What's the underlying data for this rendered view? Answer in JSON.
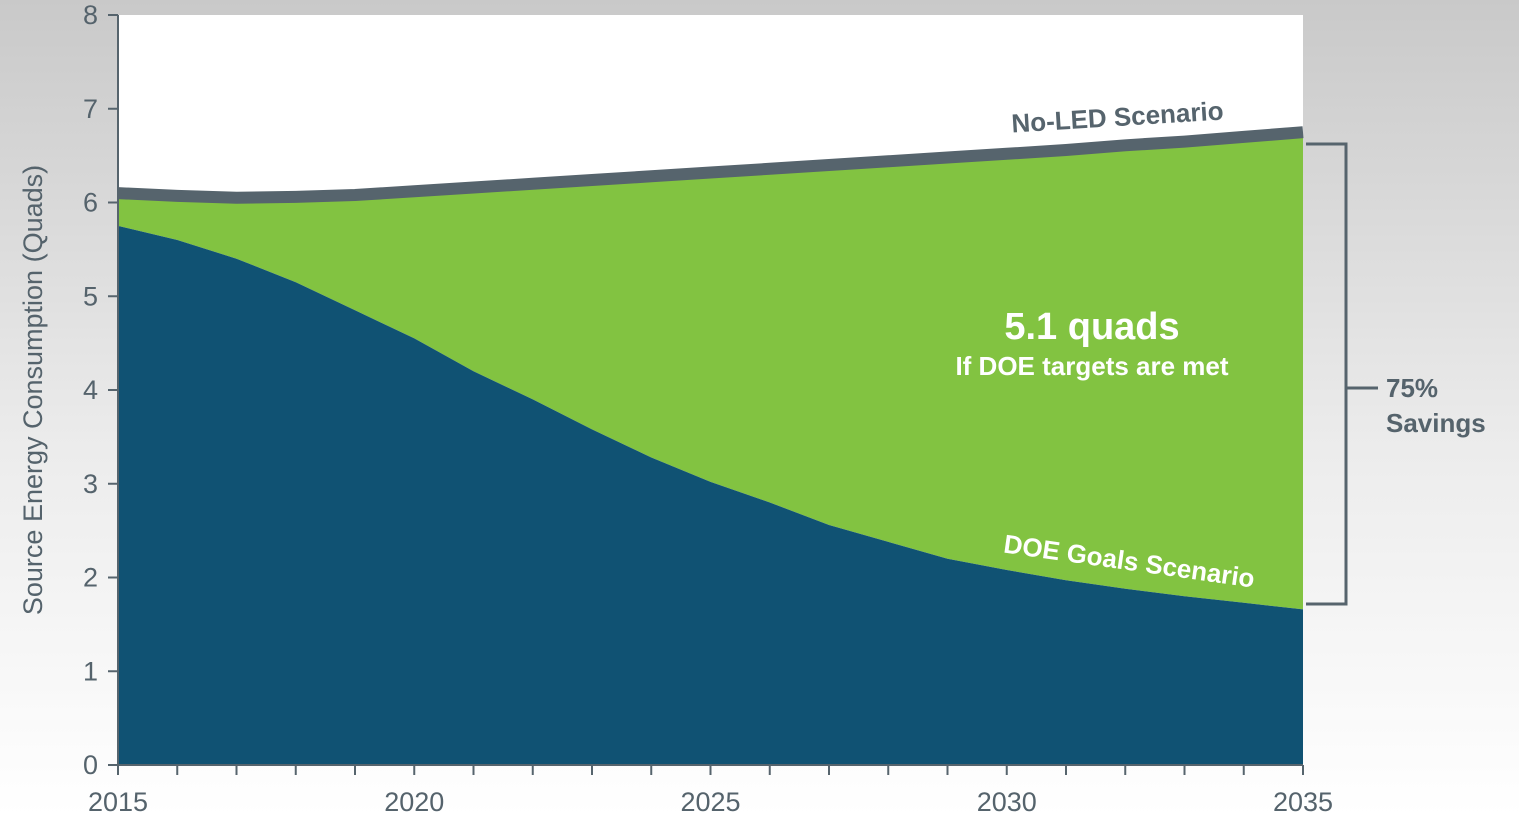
{
  "chart_data": {
    "type": "area",
    "x": [
      2015,
      2016,
      2017,
      2018,
      2019,
      2020,
      2021,
      2022,
      2023,
      2024,
      2025,
      2026,
      2027,
      2028,
      2029,
      2030,
      2031,
      2032,
      2033,
      2034,
      2035
    ],
    "series": [
      {
        "name": "No-LED Scenario",
        "values": [
          6.1,
          6.07,
          6.05,
          6.06,
          6.08,
          6.12,
          6.16,
          6.2,
          6.24,
          6.28,
          6.32,
          6.36,
          6.4,
          6.44,
          6.48,
          6.52,
          6.56,
          6.61,
          6.65,
          6.7,
          6.75
        ],
        "color": "#56646d"
      },
      {
        "name": "DOE Goals Scenario",
        "values": [
          5.75,
          5.6,
          5.4,
          5.15,
          4.85,
          4.55,
          4.2,
          3.9,
          3.58,
          3.28,
          3.02,
          2.8,
          2.56,
          2.38,
          2.2,
          2.08,
          1.97,
          1.88,
          1.8,
          1.73,
          1.66
        ],
        "color": "#105273"
      }
    ],
    "savings_fill_color": "#82c341",
    "xlabel": "",
    "ylabel": "Source Energy Consumption (Quads)",
    "xlim": [
      2015,
      2035
    ],
    "ylim": [
      0,
      8
    ],
    "x_ticks": [
      "2015",
      "2020",
      "2025",
      "2030",
      "2035"
    ],
    "y_ticks": [
      "0",
      "1",
      "2",
      "3",
      "4",
      "5",
      "6",
      "7",
      "8"
    ],
    "grid": false,
    "annotations": {
      "savings_value": "5.1 quads",
      "savings_note": "If DOE targets are met",
      "bracket_line1": "75%",
      "bracket_line2": "Savings"
    }
  }
}
